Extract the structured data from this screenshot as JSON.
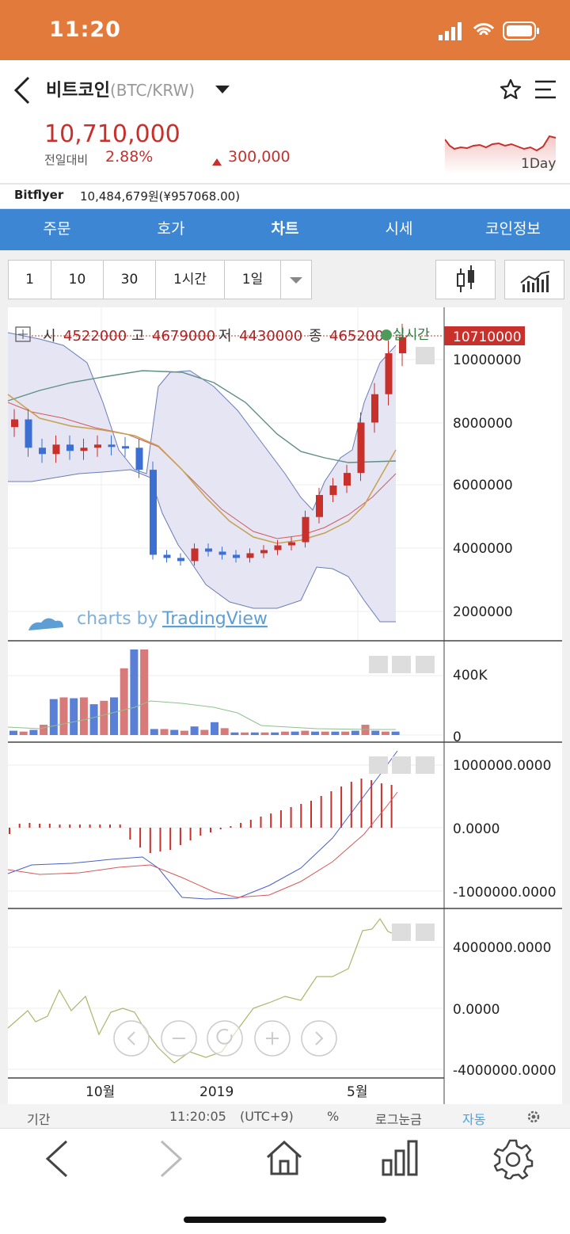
{
  "status_bar": {
    "time": "11:20"
  },
  "header": {
    "coin_name": "비트코인",
    "pair": "(BTC/KRW)",
    "price": "10,710,000",
    "change_label": "전일대비",
    "change_pct": "2.88%",
    "change_value": "300,000",
    "spark_label": "1Day"
  },
  "exchange": {
    "name": "Bitflyer",
    "value": "10,484,679원(¥957068.00)"
  },
  "tabs": [
    {
      "label": "주문"
    },
    {
      "label": "호가"
    },
    {
      "label": "차트"
    },
    {
      "label": "시세"
    },
    {
      "label": "코인정보"
    }
  ],
  "active_tab": "차트",
  "interval_buttons": [
    {
      "label": "1"
    },
    {
      "label": "10"
    },
    {
      "label": "30"
    },
    {
      "label": "1시간"
    },
    {
      "label": "1일"
    }
  ],
  "ohlc": {
    "open_label": "시",
    "open": "4522000",
    "high_label": "고",
    "high": "4679000",
    "low_label": "저",
    "low": "4430000",
    "close_label": "종",
    "close": "465200",
    "realtime_label": "실시간"
  },
  "price_axis": {
    "current": "10710000",
    "ticks": [
      "10000000",
      "8000000",
      "6000000",
      "4000000",
      "2000000"
    ]
  },
  "volume_axis": {
    "ticks": [
      "400K",
      "0"
    ]
  },
  "macd_axis": {
    "ticks": [
      "1000000.0000",
      "0.0000",
      "-1000000.0000"
    ]
  },
  "osc_axis": {
    "ticks": [
      "4000000.0000",
      "0.0000",
      "-4000000.0000"
    ]
  },
  "x_axis": {
    "ticks": [
      "10월",
      "2019",
      "5월"
    ]
  },
  "watermark": {
    "prefix": "charts by ",
    "brand": "TradingView"
  },
  "bottom_bar": {
    "period": "기간",
    "time": "11:20:05",
    "tz": "(UTC+9)",
    "pct": "%",
    "log": "로그눈금",
    "auto": "자동"
  },
  "chart_data": {
    "type": "candlestick",
    "series": [
      {
        "name": "candles",
        "close_values_approx": [
          8100000,
          7200000,
          7000000,
          7300000,
          7100000,
          7200000,
          7300000,
          7250000,
          7200000,
          6500000,
          3800000,
          3700000,
          3600000,
          4000000,
          3900000,
          3800000,
          3700000,
          3850000,
          3950000,
          4100000,
          4200000,
          5000000,
          5700000,
          6000000,
          6400000,
          8000000,
          8900000,
          10200000,
          10710000
        ]
      }
    ],
    "y_ticks": [
      2000000,
      4000000,
      6000000,
      8000000,
      10000000
    ],
    "x_ticks": [
      "10월",
      "2019",
      "5월"
    ]
  },
  "colors": {
    "brand": "#e27a3b",
    "tab_blue": "#3d86d4",
    "up": "#c8302c",
    "down": "#3b6fd1"
  }
}
